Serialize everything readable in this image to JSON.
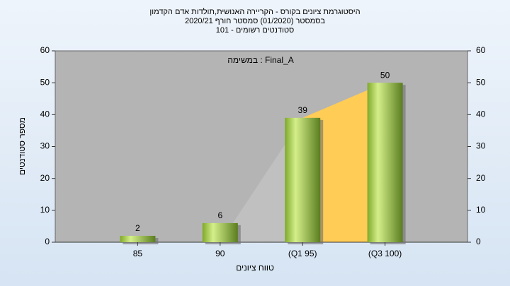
{
  "chart_data": {
    "type": "bar",
    "title": [
      "היסטוגרמת ציונים בקורס - הקריירה האנושית,תולדות אדם הקדמון",
      "בסמסטר  (01/2020)  סמסטר חורף 2020/21",
      "סטודנטים רשומים - 101"
    ],
    "annotation": "במשימה : Final_A",
    "x_label": "טווח ציונים",
    "y_label": "מספר סטודנטים",
    "categories": [
      "85",
      "90",
      "(Q1 95)",
      "(Q3 100)"
    ],
    "values": [
      2,
      6,
      39,
      50
    ],
    "color": "#9cc63a",
    "areas": [
      {
        "color": "#c0c0c0",
        "values": [
          null,
          0,
          39,
          null
        ]
      },
      {
        "color": "#ffcc55",
        "values": [
          null,
          null,
          39,
          50
        ]
      }
    ],
    "ylim": [
      0,
      60
    ],
    "yticks": [
      0,
      10,
      20,
      30,
      40,
      50,
      60
    ],
    "y2lim": [
      0,
      60
    ],
    "y2ticks": [
      0,
      10,
      20,
      30,
      40,
      50,
      60
    ]
  }
}
